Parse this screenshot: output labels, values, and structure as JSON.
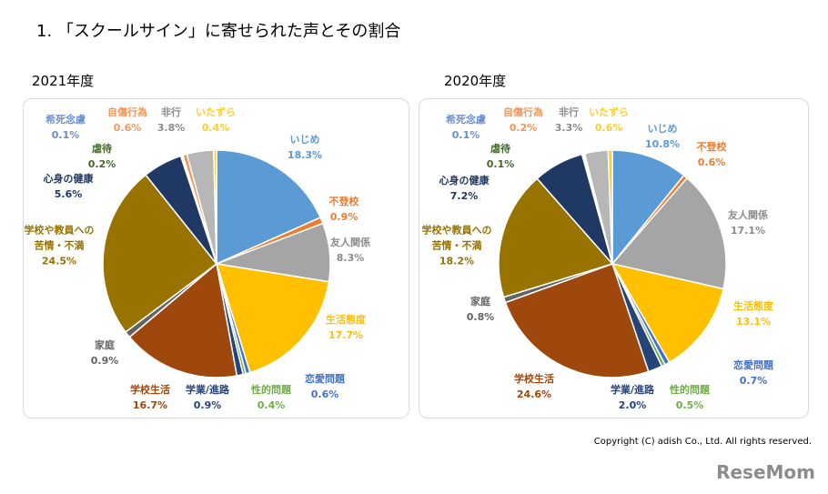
{
  "title": "1. 「スクールサイン」に寄せられた声とその割合",
  "copyright": "Copyright (C) adish Co., Ltd. All rights reserved.",
  "watermark": "ReseMom",
  "chart_data": [
    {
      "type": "pie",
      "title": "2021年度",
      "categories": [
        "いじめ",
        "不登校",
        "友人関係",
        "生活態度",
        "恋愛問題",
        "性的問題",
        "学業/進路",
        "学校生活",
        "家庭",
        "学校や教員への\n苦情・不満",
        "心身の健康",
        "虐待",
        "希死念慮",
        "自傷行為",
        "非行",
        "いたずら"
      ],
      "values": [
        18.3,
        0.9,
        8.3,
        17.7,
        0.6,
        0.4,
        0.9,
        16.7,
        0.9,
        24.5,
        5.6,
        0.2,
        0.1,
        0.6,
        3.8,
        0.4
      ],
      "value_labels": [
        "18.3%",
        "0.9%",
        "8.3%",
        "17.7%",
        "0.6%",
        "0.4%",
        "0.9%",
        "16.7%",
        "0.9%",
        "24.5%",
        "5.6%",
        "0.2%",
        "0.1%",
        "0.6%",
        "3.8%",
        "0.4%"
      ],
      "colors": [
        "#5b9bd5",
        "#ed7d31",
        "#a5a5a5",
        "#ffc000",
        "#4472c4",
        "#70ad47",
        "#264478",
        "#9e480e",
        "#636363",
        "#997300",
        "#1f3864",
        "#43682b",
        "#698ed0",
        "#f1975a",
        "#b7b7b7",
        "#ffcd33"
      ]
    },
    {
      "type": "pie",
      "title": "2020年度",
      "categories": [
        "いじめ",
        "不登校",
        "友人関係",
        "生活態度",
        "恋愛問題",
        "性的問題",
        "学業/進路",
        "学校生活",
        "家庭",
        "学校や教員への\n苦情・不満",
        "心身の健康",
        "虐待",
        "希死念慮",
        "自傷行為",
        "非行",
        "いたずら"
      ],
      "values": [
        10.8,
        0.6,
        17.1,
        13.1,
        0.7,
        0.5,
        2.0,
        24.6,
        0.8,
        18.2,
        7.2,
        0.1,
        0.1,
        0.2,
        3.3,
        0.6
      ],
      "value_labels": [
        "10.8%",
        "0.6%",
        "17.1%",
        "13.1%",
        "0.7%",
        "0.5%",
        "2.0%",
        "24.6%",
        "0.8%",
        "18.2%",
        "7.2%",
        "0.1%",
        "0.1%",
        "0.2%",
        "3.3%",
        "0.6%"
      ],
      "colors": [
        "#5b9bd5",
        "#ed7d31",
        "#a5a5a5",
        "#ffc000",
        "#4472c4",
        "#70ad47",
        "#264478",
        "#9e480e",
        "#636363",
        "#997300",
        "#1f3864",
        "#43682b",
        "#698ed0",
        "#f1975a",
        "#b7b7b7",
        "#ffcd33"
      ]
    }
  ]
}
